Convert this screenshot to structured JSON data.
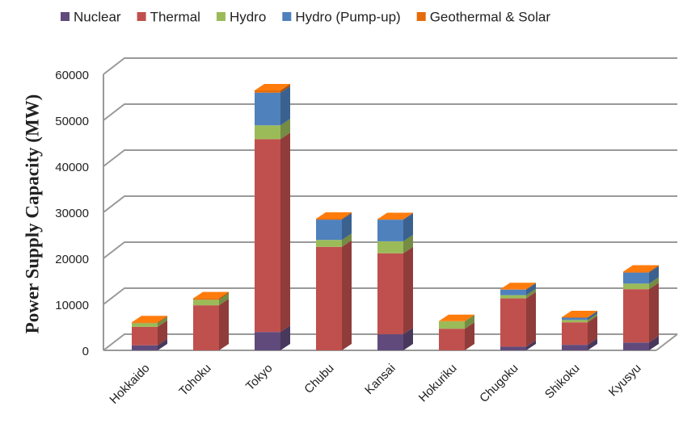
{
  "chart_data": {
    "type": "bar",
    "stacked": true,
    "y_label": "Power Supply Capacity (MW)",
    "categories": [
      "Hokkaido",
      "Tohoku",
      "Tokyo",
      "Chubu",
      "Kansai",
      "Hokuriku",
      "Chugoku",
      "Shikoku",
      "Kyusyu"
    ],
    "series": [
      {
        "name": "Nuclear",
        "color": "#604a7b",
        "values": [
          1100,
          0,
          4000,
          0,
          3500,
          0,
          800,
          1200,
          1700
        ]
      },
      {
        "name": "Thermal",
        "color": "#c0504d",
        "values": [
          4000,
          9800,
          41900,
          22500,
          17600,
          4700,
          10500,
          4900,
          11600
        ]
      },
      {
        "name": "Hydro",
        "color": "#9bbb59",
        "values": [
          800,
          1200,
          3000,
          1500,
          2600,
          1600,
          700,
          500,
          1200
        ]
      },
      {
        "name": "Hydro (Pump-up)",
        "color": "#4f81bd",
        "values": [
          0,
          0,
          7100,
          4400,
          4700,
          0,
          1200,
          500,
          2400
        ]
      },
      {
        "name": "Geothermal & Solar",
        "color": "#e46c0a",
        "values": [
          200,
          300,
          500,
          200,
          100,
          50,
          100,
          100,
          200
        ]
      }
    ],
    "ylim": [
      0,
      60000
    ],
    "yticks": [
      0,
      10000,
      20000,
      30000,
      40000,
      50000,
      60000
    ],
    "grid": true
  }
}
